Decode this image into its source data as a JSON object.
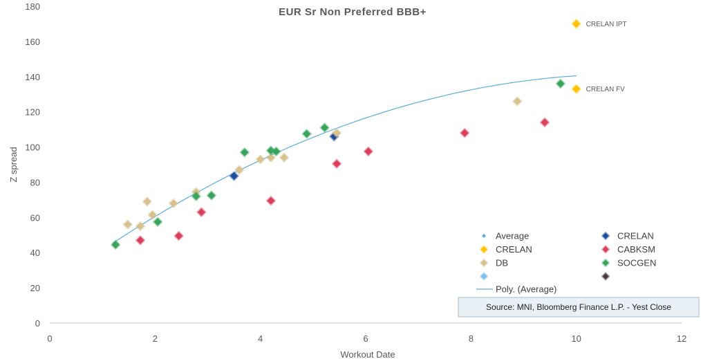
{
  "chart_data": {
    "type": "scatter",
    "title": "EUR Sr Non Preferred BBB+",
    "xlabel": "Workout Date",
    "ylabel": "Z spread",
    "xlim": [
      0,
      12
    ],
    "ylim": [
      0,
      180
    ],
    "x_ticks": [
      "0",
      "2",
      "4",
      "6",
      "8",
      "10",
      "12"
    ],
    "y_ticks": [
      "0",
      "20",
      "40",
      "60",
      "80",
      "100",
      "120",
      "140",
      "160",
      "180"
    ],
    "grid": false,
    "legend_position": "bottom-right",
    "series": [
      {
        "name": "Average",
        "color": "#5aaee0",
        "points": []
      },
      {
        "name": "CRELAN",
        "color": "#1f4e99",
        "points": [
          [
            3.5,
            83.5
          ],
          [
            5.4,
            106
          ]
        ]
      },
      {
        "name": "CRELAN",
        "color": "#ffc000",
        "points": [
          [
            10.0,
            170
          ],
          [
            10.0,
            133
          ]
        ]
      },
      {
        "name": "CABKSM",
        "color": "#d9405a",
        "points": [
          [
            1.72,
            47
          ],
          [
            2.45,
            49.5
          ],
          [
            2.88,
            63
          ],
          [
            4.2,
            69.5
          ],
          [
            5.45,
            90.5
          ],
          [
            6.05,
            97.5
          ],
          [
            7.88,
            108
          ],
          [
            9.4,
            114
          ]
        ]
      },
      {
        "name": "DB",
        "color": "#d7c28f",
        "points": [
          [
            1.48,
            56
          ],
          [
            1.72,
            55
          ],
          [
            1.85,
            69
          ],
          [
            1.95,
            61.5
          ],
          [
            2.35,
            68
          ],
          [
            2.78,
            74.5
          ],
          [
            3.6,
            87
          ],
          [
            4.0,
            93
          ],
          [
            4.2,
            94
          ],
          [
            4.45,
            94
          ],
          [
            5.45,
            108
          ],
          [
            8.88,
            126
          ]
        ]
      },
      {
        "name": "SOCGEN",
        "color": "#3aa35c",
        "points": [
          [
            1.25,
            44.5
          ],
          [
            2.05,
            57.5
          ],
          [
            2.78,
            72
          ],
          [
            3.07,
            72.5
          ],
          [
            3.7,
            97
          ],
          [
            4.2,
            98
          ],
          [
            4.3,
            97.5
          ],
          [
            4.88,
            107.5
          ],
          [
            5.22,
            111
          ],
          [
            9.7,
            136
          ]
        ]
      },
      {
        "name": "",
        "color": "#7ec2f0",
        "points": []
      },
      {
        "name": "",
        "color": "#4a3a40",
        "points": []
      }
    ],
    "trendline": {
      "name": "Poly. (Average)",
      "color": "#5aaee0",
      "x_range": [
        1.2,
        10.0
      ],
      "coefficients": [
        20.5,
        22.0,
        -1.0
      ]
    },
    "annotations": [
      {
        "text": "CRELAN IPT",
        "x": 10.0,
        "y": 170
      },
      {
        "text": "CRELAN FV",
        "x": 10.0,
        "y": 133
      }
    ]
  },
  "legend": {
    "items": [
      {
        "label": "Average",
        "color": "#5aaee0",
        "marker": "small-diamond"
      },
      {
        "label": "CRELAN",
        "color": "#1f4e99",
        "marker": "diamond"
      },
      {
        "label": "CRELAN",
        "color": "#ffc000",
        "marker": "diamond"
      },
      {
        "label": "CABKSM",
        "color": "#d9405a",
        "marker": "diamond"
      },
      {
        "label": "DB",
        "color": "#d7c28f",
        "marker": "diamond"
      },
      {
        "label": "SOCGEN",
        "color": "#3aa35c",
        "marker": "diamond"
      },
      {
        "label": "",
        "color": "#7ec2f0",
        "marker": "diamond"
      },
      {
        "label": "",
        "color": "#4a3a40",
        "marker": "diamond"
      }
    ],
    "trend_label": "Poly. (Average)"
  },
  "source": "Source: MNI, Bloomberg Finance L.P. - Yest Close"
}
